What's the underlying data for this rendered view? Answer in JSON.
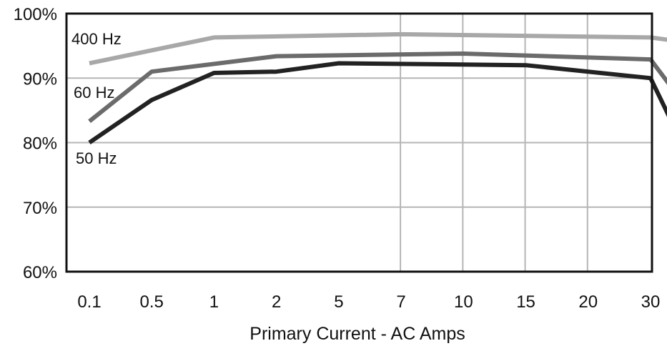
{
  "chart_data": {
    "type": "line",
    "title": "",
    "xlabel": "Primary Current - AC Amps",
    "ylabel": "",
    "categories": [
      "0.1",
      "0.5",
      "1",
      "2",
      "5",
      "7",
      "10",
      "15",
      "20",
      "30"
    ],
    "x_tick_labels": [
      "0.1",
      "0.5",
      "1",
      "2",
      "5",
      "7",
      "10",
      "15",
      "20",
      "30"
    ],
    "y_ticks": [
      60,
      70,
      80,
      90,
      100
    ],
    "y_tick_labels": [
      "60%",
      "70%",
      "80%",
      "90%",
      "100%"
    ],
    "ylim": [
      60,
      100
    ],
    "grid": true,
    "series": [
      {
        "name": "400 Hz",
        "color": "#a8a8a8",
        "points": [
          {
            "x": 0,
            "y": 92.3
          },
          {
            "x": 2,
            "y": 96.3
          },
          {
            "x": 5,
            "y": 96.8
          },
          {
            "x": 9,
            "y": 96.3
          },
          {
            "x": 10,
            "y": 95.0
          }
        ]
      },
      {
        "name": "60 Hz",
        "color": "#6b6b6b",
        "points": [
          {
            "x": 0,
            "y": 83.3
          },
          {
            "x": 1,
            "y": 91.0
          },
          {
            "x": 3,
            "y": 93.4
          },
          {
            "x": 6,
            "y": 93.8
          },
          {
            "x": 9,
            "y": 92.9
          },
          {
            "x": 10,
            "y": 80.0
          }
        ]
      },
      {
        "name": "50 Hz",
        "color": "#222222",
        "points": [
          {
            "x": 0,
            "y": 80.0
          },
          {
            "x": 1,
            "y": 86.6
          },
          {
            "x": 2,
            "y": 90.8
          },
          {
            "x": 3,
            "y": 91.0
          },
          {
            "x": 4,
            "y": 92.3
          },
          {
            "x": 7,
            "y": 92.0
          },
          {
            "x": 9,
            "y": 90.0
          },
          {
            "x": 10,
            "y": 70.0
          }
        ]
      }
    ]
  }
}
